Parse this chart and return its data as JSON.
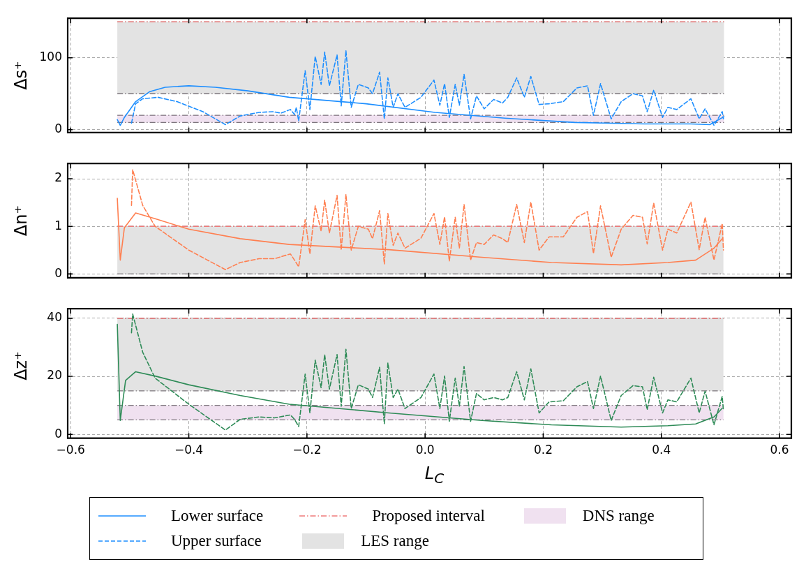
{
  "chart_data": [
    {
      "type": "line",
      "ylabel": "Δs⁺",
      "xlim": [
        -0.605,
        0.62
      ],
      "xticks": [
        -0.6,
        -0.4,
        -0.2,
        0,
        0.2,
        0.4,
        0.6
      ],
      "ylim": [
        -4,
        155
      ],
      "yticks": [
        0,
        100
      ],
      "grid": true,
      "tick_labels": "y",
      "legend": "bottom",
      "bands": [
        {
          "axis": "y",
          "from": 50,
          "to": 150,
          "label": "LES range",
          "color": "#e3e3e3"
        },
        {
          "axis": "y",
          "from": 10,
          "to": 20,
          "label": "DNS range",
          "color": "#f0e1f0"
        }
      ],
      "ref_lines": [
        {
          "axis": "y",
          "value": 150,
          "label": "Proposed interval",
          "color": "#f07b7b",
          "line_style": "dashdot"
        }
      ],
      "series": [
        {
          "name": "Lower surface",
          "color": "#1e8fff",
          "line_style": "solid",
          "x": [
            -0.521,
            -0.516,
            -0.509,
            -0.49,
            -0.466,
            -0.44,
            -0.4,
            -0.355,
            -0.3,
            -0.23,
            -0.1,
            0.017,
            0.135,
            0.253,
            0.371,
            0.45,
            0.482,
            0.506
          ],
          "values": [
            14,
            6,
            17,
            39,
            53,
            59,
            61,
            59,
            54,
            45,
            36,
            24,
            16,
            10,
            8,
            8,
            7,
            18
          ]
        },
        {
          "name": "Upper surface",
          "color": "#1e8fff",
          "line_style": "dashed",
          "x": [
            -0.497,
            -0.49,
            -0.478,
            -0.452,
            -0.42,
            -0.376,
            -0.338,
            -0.313,
            -0.281,
            -0.258,
            -0.244,
            -0.228,
            -0.221,
            -0.218,
            -0.214,
            -0.203,
            -0.195,
            -0.186,
            -0.176,
            -0.17,
            -0.162,
            -0.149,
            -0.142,
            -0.134,
            -0.125,
            -0.113,
            -0.096,
            -0.089,
            -0.077,
            -0.069,
            -0.063,
            -0.054,
            -0.046,
            -0.034,
            -0.007,
            0.015,
            0.025,
            0.033,
            0.041,
            0.051,
            0.058,
            0.066,
            0.077,
            0.087,
            0.1,
            0.116,
            0.131,
            0.14,
            0.155,
            0.168,
            0.179,
            0.193,
            0.21,
            0.234,
            0.257,
            0.275,
            0.285,
            0.297,
            0.315,
            0.332,
            0.352,
            0.368,
            0.376,
            0.387,
            0.402,
            0.411,
            0.426,
            0.45,
            0.464,
            0.474,
            0.489,
            0.503,
            0.505
          ],
          "values": [
            9,
            36,
            43,
            45,
            39,
            25,
            7,
            19,
            24,
            25,
            23,
            28,
            21,
            31,
            12,
            82,
            28,
            102,
            63,
            108,
            61,
            104,
            33,
            110,
            31,
            63,
            58,
            50,
            80,
            15,
            72,
            31,
            50,
            31,
            45,
            69,
            34,
            64,
            17,
            63,
            34,
            77,
            15,
            47,
            29,
            42,
            37,
            45,
            72,
            45,
            74,
            35,
            36,
            39,
            58,
            61,
            20,
            64,
            15,
            39,
            50,
            47,
            25,
            55,
            17,
            31,
            28,
            43,
            15,
            29,
            6,
            25,
            15
          ]
        }
      ]
    },
    {
      "type": "line",
      "ylabel": "Δn⁺",
      "xlim": [
        -0.605,
        0.62
      ],
      "xticks": [
        -0.6,
        -0.4,
        -0.2,
        0,
        0.2,
        0.4,
        0.6
      ],
      "ylim": [
        -0.08,
        2.32
      ],
      "yticks": [
        0,
        1,
        2
      ],
      "grid": true,
      "tick_labels": "y",
      "bands": [
        {
          "axis": "y",
          "from": 0,
          "to": 1,
          "color": "#e3e3e3"
        }
      ],
      "ref_lines": [
        {
          "axis": "y",
          "value": 1,
          "color": "#f07b7b",
          "line_style": "dashdot"
        }
      ],
      "series": [
        {
          "color": "#ff7f50",
          "line_style": "solid",
          "x": [
            -0.521,
            -0.516,
            -0.509,
            -0.49,
            -0.457,
            -0.4,
            -0.313,
            -0.23,
            -0.061,
            0.096,
            0.214,
            0.332,
            0.411,
            0.458,
            0.489,
            0.503
          ],
          "values": [
            1.59,
            0.29,
            0.97,
            1.28,
            1.16,
            0.94,
            0.74,
            0.62,
            0.51,
            0.35,
            0.24,
            0.19,
            0.24,
            0.29,
            0.54,
            0.74
          ]
        },
        {
          "color": "#ff7f50",
          "line_style": "dashed",
          "x": [
            -0.497,
            -0.495,
            -0.478,
            -0.457,
            -0.4,
            -0.338,
            -0.313,
            -0.281,
            -0.255,
            -0.228,
            -0.221,
            -0.214,
            -0.203,
            -0.195,
            -0.186,
            -0.176,
            -0.17,
            -0.162,
            -0.149,
            -0.142,
            -0.134,
            -0.125,
            -0.113,
            -0.096,
            -0.089,
            -0.077,
            -0.069,
            -0.063,
            -0.054,
            -0.046,
            -0.034,
            -0.007,
            0.015,
            0.025,
            0.033,
            0.041,
            0.051,
            0.058,
            0.066,
            0.077,
            0.087,
            0.1,
            0.116,
            0.131,
            0.14,
            0.155,
            0.168,
            0.179,
            0.193,
            0.21,
            0.234,
            0.257,
            0.275,
            0.285,
            0.297,
            0.315,
            0.332,
            0.352,
            0.368,
            0.376,
            0.387,
            0.402,
            0.411,
            0.426,
            0.45,
            0.464,
            0.474,
            0.489,
            0.503,
            0.505
          ],
          "values": [
            1.44,
            2.19,
            1.44,
            1.0,
            0.5,
            0.09,
            0.24,
            0.32,
            0.32,
            0.42,
            0.29,
            0.15,
            1.14,
            0.42,
            1.43,
            0.9,
            1.55,
            0.86,
            1.65,
            0.5,
            1.67,
            0.5,
            1.0,
            0.94,
            0.74,
            1.33,
            0.21,
            1.27,
            0.6,
            0.86,
            0.54,
            0.75,
            1.27,
            0.62,
            1.2,
            0.27,
            1.19,
            0.54,
            1.46,
            0.29,
            0.66,
            0.62,
            0.82,
            0.74,
            0.66,
            1.46,
            0.66,
            1.51,
            0.5,
            0.78,
            0.78,
            1.19,
            1.31,
            0.43,
            1.43,
            0.35,
            0.94,
            1.23,
            1.19,
            0.63,
            1.49,
            0.5,
            0.94,
            0.86,
            1.51,
            0.51,
            1.19,
            0.29,
            1.06,
            0.5
          ]
        }
      ]
    },
    {
      "type": "line",
      "ylabel": "Δz⁺",
      "xlabel": "L$_{C}$",
      "xlim": [
        -0.605,
        0.62
      ],
      "xticks": [
        {
          "value": -0.6,
          "label": "−0.6"
        },
        {
          "value": -0.4,
          "label": "−0.4"
        },
        {
          "value": -0.2,
          "label": "−0.2"
        },
        {
          "value": 0,
          "label": "0.0"
        },
        0.2,
        0.4,
        0.6
      ],
      "ylim": [
        -1.3,
        43.3
      ],
      "yticks": [
        0,
        20,
        40
      ],
      "grid": true,
      "bands": [
        {
          "axis": "y",
          "from": 15,
          "to": 40,
          "color": "#e3e3e3"
        },
        {
          "axis": "y",
          "from": 5,
          "to": 10,
          "color": "#f0e1f0"
        }
      ],
      "ref_lines": [
        {
          "axis": "y",
          "value": 40,
          "color": "#f07b7b",
          "line_style": "dashdot"
        }
      ],
      "series": [
        {
          "color": "#2e8b57",
          "line_style": "solid",
          "x": [
            -0.521,
            -0.516,
            -0.507,
            -0.49,
            -0.457,
            -0.4,
            -0.313,
            -0.23,
            -0.061,
            0.096,
            0.214,
            0.332,
            0.411,
            0.458,
            0.489,
            0.503
          ],
          "values": [
            37.9,
            4.8,
            18.6,
            21.6,
            20.1,
            17.1,
            13.4,
            10.4,
            7.4,
            4.8,
            3.3,
            2.5,
            3.0,
            3.6,
            6.0,
            9.0
          ]
        },
        {
          "color": "#2e8b57",
          "line_style": "dashed",
          "x": [
            -0.497,
            -0.495,
            -0.478,
            -0.457,
            -0.4,
            -0.338,
            -0.313,
            -0.281,
            -0.255,
            -0.228,
            -0.221,
            -0.214,
            -0.203,
            -0.195,
            -0.186,
            -0.176,
            -0.17,
            -0.162,
            -0.149,
            -0.142,
            -0.134,
            -0.125,
            -0.113,
            -0.096,
            -0.089,
            -0.077,
            -0.069,
            -0.063,
            -0.054,
            -0.046,
            -0.034,
            -0.007,
            0.015,
            0.025,
            0.033,
            0.041,
            0.051,
            0.058,
            0.066,
            0.077,
            0.087,
            0.1,
            0.116,
            0.131,
            0.14,
            0.155,
            0.168,
            0.179,
            0.193,
            0.21,
            0.234,
            0.257,
            0.275,
            0.285,
            0.297,
            0.315,
            0.332,
            0.352,
            0.368,
            0.376,
            0.387,
            0.402,
            0.411,
            0.426,
            0.45,
            0.464,
            0.474,
            0.489,
            0.503,
            0.505
          ],
          "values": [
            35,
            41.5,
            28.3,
            19.4,
            10.4,
            1.5,
            5.2,
            6.0,
            5.7,
            6.7,
            5.2,
            2.7,
            20.8,
            7.4,
            25.6,
            16.1,
            27.5,
            15.6,
            27.5,
            9.7,
            29.3,
            8.9,
            17.1,
            15.6,
            12.7,
            23.1,
            3.7,
            24.6,
            12.7,
            15.6,
            8.9,
            12.7,
            20.8,
            8.9,
            20.1,
            4.5,
            19.4,
            9.7,
            23.4,
            4.5,
            14.1,
            11.9,
            12.7,
            11.9,
            12.7,
            21.6,
            11.9,
            22.6,
            7.4,
            11.2,
            11.6,
            16.4,
            18.2,
            8.9,
            20.1,
            4.8,
            13.4,
            16.8,
            16.4,
            8.5,
            19.7,
            7.4,
            11.9,
            11.2,
            19.4,
            7.4,
            14.9,
            3.3,
            13.1,
            8.2
          ]
        }
      ]
    }
  ]
}
